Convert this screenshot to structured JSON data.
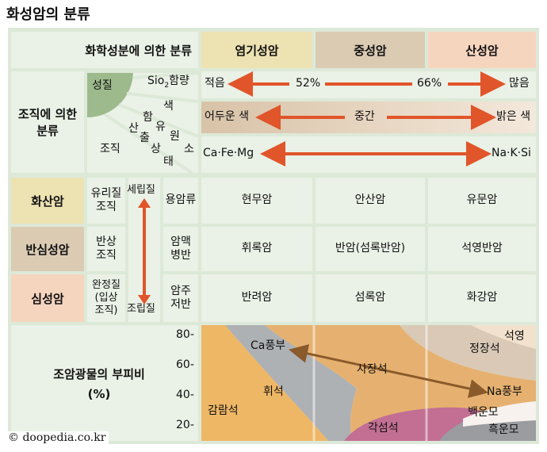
{
  "title": "화성암의 분류",
  "colors": {
    "grid_bg": "#dde9d8",
    "cell_bg": "#eaf1e6",
    "mafic_header": "#ece2b2",
    "intermediate_header": "#dbcbb3",
    "felsic_header": "#f6d5bf",
    "arrow": "#e0552a",
    "band_tan": "#e6c9a5",
    "olive_green": "#9dba8c"
  },
  "header": {
    "chem_label": "화학성분에 의한 분류",
    "texture_label": "조직에 의한 분류",
    "texture_label_line1": "조직에 의한",
    "texture_label_line2": "분류",
    "columns": [
      "염기성암",
      "중성암",
      "산성암"
    ]
  },
  "property_wheel": {
    "center": "성질",
    "sio2": "Sio2함량",
    "sio2_main": "Sio",
    "sio2_sub": "2",
    "sio2_rest": "함량",
    "color": "색",
    "element": "함유원소",
    "element_chars": [
      "함",
      "유",
      "원",
      "소"
    ],
    "shape": "산출상태",
    "shape_chars": [
      "산",
      "출",
      "상",
      "태"
    ],
    "texture": "조직"
  },
  "property_rows": {
    "sio2": {
      "left": "적음",
      "mid1": "52%",
      "mid2": "66%",
      "right": "많음"
    },
    "color": {
      "left": "어두운 색",
      "mid": "중간",
      "right": "밝은 색"
    },
    "element": {
      "left": "Ca·Fe·Mg",
      "right": "Na·K·Si"
    }
  },
  "rock_rows": [
    {
      "name": "화산암",
      "texture": "유리질 조직",
      "texture_l1": "유리질",
      "texture_l2": "조직",
      "shape": "용암류",
      "rocks": [
        "현무암",
        "안산암",
        "유문암"
      ],
      "bg": "#ece2b2"
    },
    {
      "name": "반심성암",
      "texture": "반상 조직",
      "texture_l1": "반상",
      "texture_l2": "조직",
      "shape": "암맥 병반",
      "shape_l1": "암맥",
      "shape_l2": "병반",
      "rocks": [
        "휘록암",
        "반암(섬록반암)",
        "석영반암"
      ],
      "bg": "#dbcbb3"
    },
    {
      "name": "심성암",
      "texture": "완정질 (입상 조직)",
      "texture_l1": "완정질",
      "texture_l2": "(입상",
      "texture_l3": "조직)",
      "shape": "암주 저반",
      "shape_l1": "암주",
      "shape_l2": "저반",
      "rocks": [
        "반려암",
        "섬록암",
        "화강암"
      ],
      "bg": "#f6d5bf"
    }
  ],
  "grain_arrow": {
    "top": "세립질",
    "bottom": "조립질"
  },
  "mineral_section": {
    "label": "조암광물의 부피비",
    "unit": "(%)",
    "ticks": [
      "80-",
      "60-",
      "40-",
      "20-"
    ],
    "minerals": {
      "olivine": "감람석",
      "pyroxene": "휘석",
      "plagioclase": "사장석",
      "ca_rich": "Ca풍부",
      "na_rich": "Na풍부",
      "amphibole": "각섬석",
      "biotite": "흑운모",
      "muscovite": "백운모",
      "orthoclase": "정장석",
      "quartz": "석영"
    }
  },
  "credit": "© doopedia.co.kr"
}
